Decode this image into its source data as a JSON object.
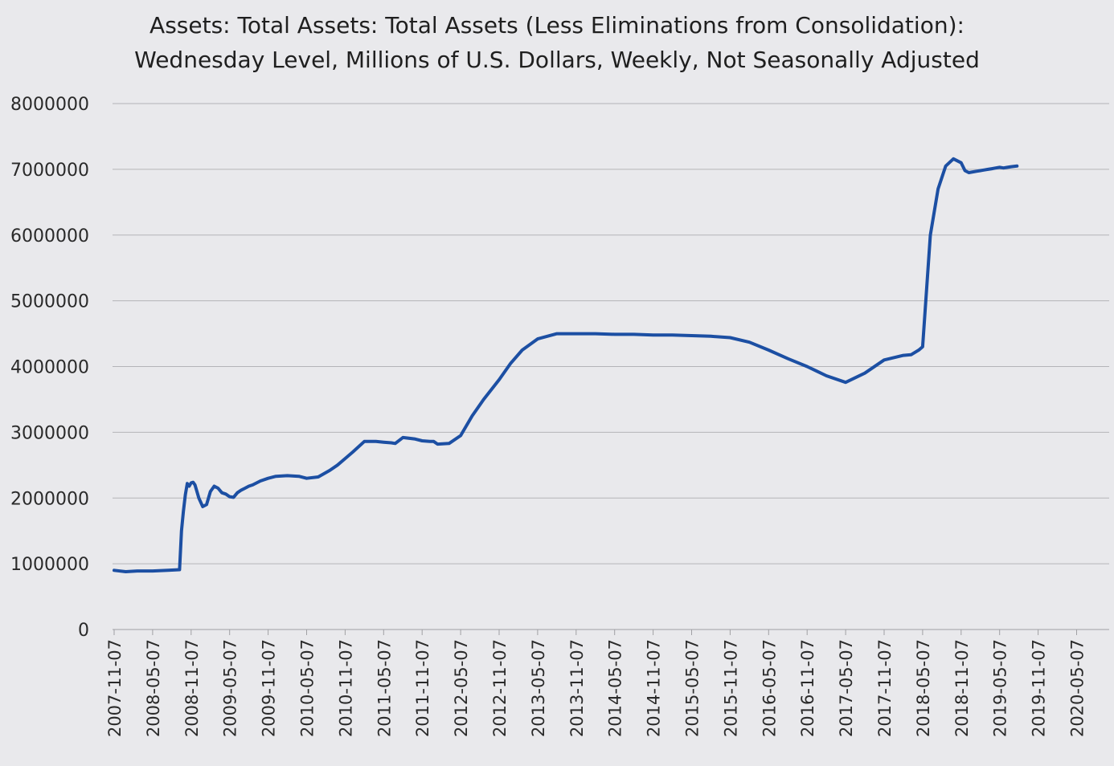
{
  "chart_data": {
    "type": "line",
    "title_line1": "Assets: Total Assets: Total Assets (Less Eliminations from Consolidation):",
    "title_line2": "Wednesday Level, Millions of U.S. Dollars, Weekly, Not Seasonally Adjusted",
    "xlabel": "",
    "ylabel": "",
    "ylim": [
      0,
      8000000
    ],
    "yticks": [
      0,
      1000000,
      2000000,
      3000000,
      4000000,
      5000000,
      6000000,
      7000000,
      8000000
    ],
    "ytick_labels": [
      "0",
      "1000000",
      "2000000",
      "3000000",
      "4000000",
      "5000000",
      "6000000",
      "7000000",
      "8000000"
    ],
    "xtick_labels": [
      "2007-11-07",
      "2008-05-07",
      "2008-11-07",
      "2009-05-07",
      "2009-11-07",
      "2010-05-07",
      "2010-11-07",
      "2011-05-07",
      "2011-11-07",
      "2012-05-07",
      "2012-11-07",
      "2013-05-07",
      "2013-11-07",
      "2014-05-07",
      "2014-11-07",
      "2015-05-07",
      "2015-11-07",
      "2016-05-07",
      "2016-11-07",
      "2017-05-07",
      "2017-11-07",
      "2018-05-07",
      "2018-11-07",
      "2019-05-07",
      "2019-11-07",
      "2020-05-07"
    ],
    "grid": true,
    "series": [
      {
        "name": "Total Assets",
        "color": "#1c4fa3",
        "x": [
          0,
          0.3,
          0.6,
          1.0,
          1.4,
          1.7,
          1.75,
          1.8,
          1.85,
          1.9,
          1.95,
          2.0,
          2.05,
          2.1,
          2.15,
          2.2,
          2.3,
          2.4,
          2.5,
          2.6,
          2.7,
          2.8,
          2.9,
          3.0,
          3.1,
          3.2,
          3.3,
          3.4,
          3.5,
          3.6,
          3.8,
          4.0,
          4.2,
          4.5,
          4.8,
          5.0,
          5.3,
          5.6,
          5.8,
          6.0,
          6.2,
          6.5,
          6.8,
          7.0,
          7.2,
          7.3,
          7.5,
          7.8,
          8.0,
          8.2,
          8.3,
          8.4,
          8.7,
          9.0,
          9.3,
          9.6,
          10.0,
          10.3,
          10.6,
          11.0,
          11.5,
          12.0,
          12.5,
          13.0,
          13.5,
          14.0,
          14.5,
          15.0,
          15.5,
          16.0,
          16.5,
          17.0,
          17.5,
          18.0,
          18.5,
          19.0,
          19.5,
          20.0,
          20.5,
          20.7,
          20.9,
          21.0,
          21.2,
          21.4,
          21.6,
          21.8,
          22.0,
          22.1,
          22.2,
          22.3,
          22.4,
          22.5,
          22.6,
          22.7,
          22.8,
          22.9,
          23.0,
          23.1,
          23.2,
          23.3,
          23.45
        ],
        "values": [
          900000,
          880000,
          890000,
          890000,
          900000,
          910000,
          1500000,
          1800000,
          2050000,
          2220000,
          2180000,
          2230000,
          2240000,
          2200000,
          2100000,
          2000000,
          1870000,
          1900000,
          2100000,
          2180000,
          2150000,
          2080000,
          2060000,
          2020000,
          2010000,
          2080000,
          2120000,
          2150000,
          2180000,
          2200000,
          2260000,
          2300000,
          2330000,
          2340000,
          2330000,
          2300000,
          2320000,
          2420000,
          2500000,
          2600000,
          2700000,
          2860000,
          2860000,
          2850000,
          2840000,
          2830000,
          2920000,
          2900000,
          2870000,
          2860000,
          2860000,
          2820000,
          2830000,
          2950000,
          3250000,
          3500000,
          3800000,
          4050000,
          4250000,
          4420000,
          4500000,
          4500000,
          4500000,
          4490000,
          4490000,
          4480000,
          4480000,
          4470000,
          4460000,
          4440000,
          4370000,
          4250000,
          4120000,
          4000000,
          3860000,
          3760000,
          3900000,
          4100000,
          4170000,
          4180000,
          4250000,
          4300000,
          6000000,
          6700000,
          7050000,
          7160000,
          7100000,
          6980000,
          6950000,
          6960000,
          6970000,
          6980000,
          6990000,
          7000000,
          7010000,
          7020000,
          7030000,
          7020000,
          7030000,
          7040000,
          7050000
        ]
      }
    ]
  }
}
